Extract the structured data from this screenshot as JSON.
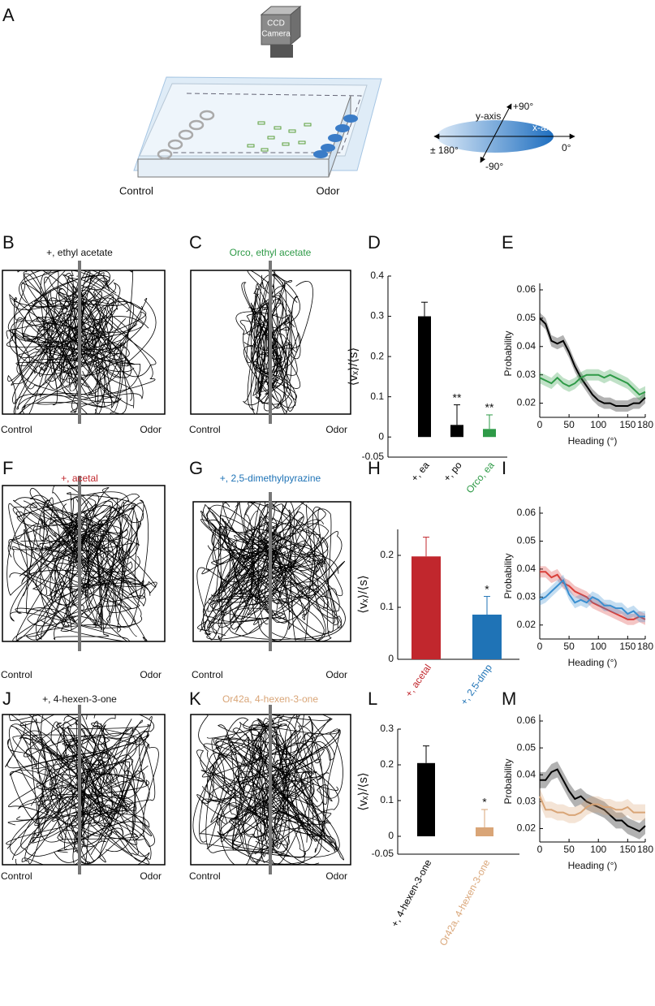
{
  "panels": [
    "A",
    "B",
    "C",
    "D",
    "E",
    "F",
    "G",
    "H",
    "I",
    "J",
    "K",
    "L",
    "M"
  ],
  "setup": {
    "camera": [
      "CCD",
      "Camera"
    ],
    "control": "Control",
    "odor": "Odor",
    "y_axis": "y-axis",
    "x_axis": "x-axis",
    "plus90": "+90°",
    "minus90": "-90°",
    "pm180": "± 180°",
    "zero": "0°"
  },
  "trajectories": [
    {
      "title": "+, ethyl acetate",
      "color": "#111111",
      "left": "Control",
      "right": "Odor"
    },
    {
      "title": "Orco, ethyl acetate",
      "color": "#2e9a47",
      "left": "Control",
      "right": "Odor"
    },
    {
      "title": "+, acetal",
      "color": "#c1272d",
      "left": "Control",
      "right": "Odor"
    },
    {
      "title": "+, 2,5-dimethylpyrazine",
      "color": "#1f73b6",
      "left": "Control",
      "right": "Odor"
    },
    {
      "title": "+, 4-hexen-3-one",
      "color": "#111111",
      "left": "Control",
      "right": "Odor"
    },
    {
      "title": "Or42a, 4-hexen-3-one",
      "color": "#d9a577",
      "left": "Control",
      "right": "Odor"
    }
  ],
  "chart_data": [
    {
      "type": "bar",
      "ylabel": "⟨vₓ⟩/⟨s⟩",
      "categories": [
        "+, ea",
        "+, po",
        "Orco, ea"
      ],
      "values": [
        0.3,
        0.03,
        0.02
      ],
      "errors": [
        0.035,
        0.05,
        0.035
      ],
      "markers": [
        null,
        "**",
        "**"
      ],
      "colors": [
        "#000000",
        "#000000",
        "#2e9a47"
      ],
      "ylim": [
        -0.05,
        0.4
      ],
      "yticks": [
        -0.05,
        0,
        0.1,
        0.2,
        0.3,
        0.4
      ]
    },
    {
      "type": "line",
      "ylabel": "Probability",
      "xlabel": "Heading (°)",
      "x": [
        0,
        10,
        20,
        30,
        40,
        50,
        60,
        70,
        80,
        90,
        100,
        110,
        120,
        130,
        140,
        150,
        160,
        170,
        180
      ],
      "series": [
        {
          "color": "#000000",
          "values": [
            0.05,
            0.048,
            0.042,
            0.041,
            0.042,
            0.038,
            0.033,
            0.029,
            0.026,
            0.023,
            0.021,
            0.02,
            0.02,
            0.019,
            0.019,
            0.019,
            0.02,
            0.02,
            0.022
          ],
          "errors": [
            0.002,
            0.002,
            0.002,
            0.002,
            0.002,
            0.002,
            0.002,
            0.002,
            0.002,
            0.002,
            0.002,
            0.002,
            0.002,
            0.002,
            0.002,
            0.002,
            0.002,
            0.002,
            0.002
          ]
        },
        {
          "color": "#2e9a47",
          "values": [
            0.029,
            0.028,
            0.027,
            0.029,
            0.027,
            0.026,
            0.027,
            0.029,
            0.03,
            0.03,
            0.03,
            0.029,
            0.03,
            0.029,
            0.028,
            0.027,
            0.025,
            0.023,
            0.024
          ],
          "errors": [
            0.002,
            0.002,
            0.002,
            0.002,
            0.002,
            0.002,
            0.002,
            0.002,
            0.002,
            0.002,
            0.002,
            0.002,
            0.002,
            0.002,
            0.002,
            0.002,
            0.002,
            0.002,
            0.002
          ]
        }
      ],
      "xlim": [
        0,
        180
      ],
      "xticks": [
        0,
        50,
        100,
        150,
        180
      ],
      "ylim": [
        0.015,
        0.06
      ],
      "yticks": [
        0.02,
        0.03,
        0.04,
        0.05,
        0.06
      ]
    },
    {
      "type": "bar",
      "ylabel": "⟨vₓ⟩/⟨s⟩",
      "categories": [
        "+, acetal",
        "+, 2,5-dmp"
      ],
      "values": [
        0.198,
        0.086
      ],
      "errors": [
        0.037,
        0.035
      ],
      "markers": [
        null,
        "*"
      ],
      "colors": [
        "#c1272d",
        "#1f73b6"
      ],
      "ylim": [
        0,
        0.25
      ],
      "yticks": [
        0,
        0.1,
        0.2
      ]
    },
    {
      "type": "line",
      "ylabel": "Probability",
      "xlabel": "Heading (°)",
      "x": [
        0,
        10,
        20,
        30,
        40,
        50,
        60,
        70,
        80,
        90,
        100,
        110,
        120,
        130,
        140,
        150,
        160,
        170,
        180
      ],
      "series": [
        {
          "color": "#d9403a",
          "values": [
            0.039,
            0.039,
            0.037,
            0.038,
            0.035,
            0.034,
            0.032,
            0.031,
            0.03,
            0.028,
            0.027,
            0.026,
            0.025,
            0.024,
            0.023,
            0.022,
            0.022,
            0.023,
            0.022
          ],
          "errors": [
            0.002,
            0.002,
            0.002,
            0.002,
            0.002,
            0.002,
            0.002,
            0.002,
            0.002,
            0.002,
            0.002,
            0.002,
            0.002,
            0.002,
            0.002,
            0.002,
            0.002,
            0.002,
            0.002
          ]
        },
        {
          "color": "#3a8fd0",
          "values": [
            0.029,
            0.03,
            0.032,
            0.034,
            0.036,
            0.031,
            0.028,
            0.029,
            0.028,
            0.03,
            0.029,
            0.027,
            0.027,
            0.026,
            0.026,
            0.024,
            0.025,
            0.023,
            0.023
          ],
          "errors": [
            0.002,
            0.002,
            0.002,
            0.002,
            0.002,
            0.002,
            0.002,
            0.002,
            0.002,
            0.002,
            0.002,
            0.002,
            0.002,
            0.002,
            0.002,
            0.002,
            0.002,
            0.002,
            0.002
          ]
        }
      ],
      "xlim": [
        0,
        180
      ],
      "xticks": [
        0,
        50,
        100,
        150,
        180
      ],
      "ylim": [
        0.015,
        0.06
      ],
      "yticks": [
        0.02,
        0.03,
        0.04,
        0.05,
        0.06
      ]
    },
    {
      "type": "bar",
      "ylabel": "⟨vₓ⟩/⟨s⟩",
      "categories": [
        "+, 4-hexen-3-one",
        "Or42a, 4-hexen-3-one"
      ],
      "values": [
        0.205,
        0.025
      ],
      "errors": [
        0.048,
        0.05
      ],
      "markers": [
        null,
        "*"
      ],
      "colors": [
        "#000000",
        "#d9a577"
      ],
      "ylim": [
        -0.05,
        0.3
      ],
      "yticks": [
        -0.05,
        0,
        0.1,
        0.2,
        0.3
      ]
    },
    {
      "type": "line",
      "ylabel": "Probability",
      "xlabel": "Heading (°)",
      "x": [
        0,
        10,
        20,
        30,
        40,
        50,
        60,
        70,
        80,
        90,
        100,
        110,
        120,
        130,
        140,
        150,
        160,
        170,
        180
      ],
      "series": [
        {
          "color": "#000000",
          "values": [
            0.038,
            0.038,
            0.041,
            0.042,
            0.038,
            0.034,
            0.031,
            0.032,
            0.03,
            0.029,
            0.028,
            0.027,
            0.025,
            0.023,
            0.023,
            0.021,
            0.02,
            0.019,
            0.021
          ],
          "errors": [
            0.003,
            0.003,
            0.003,
            0.003,
            0.003,
            0.003,
            0.003,
            0.003,
            0.003,
            0.003,
            0.003,
            0.003,
            0.003,
            0.003,
            0.003,
            0.003,
            0.003,
            0.003,
            0.003
          ]
        },
        {
          "color": "#d9a577",
          "values": [
            0.032,
            0.027,
            0.027,
            0.026,
            0.026,
            0.025,
            0.025,
            0.026,
            0.028,
            0.029,
            0.029,
            0.028,
            0.028,
            0.027,
            0.027,
            0.028,
            0.026,
            0.026,
            0.026
          ],
          "errors": [
            0.003,
            0.003,
            0.003,
            0.003,
            0.003,
            0.003,
            0.003,
            0.003,
            0.003,
            0.003,
            0.003,
            0.003,
            0.003,
            0.003,
            0.003,
            0.003,
            0.003,
            0.003,
            0.003
          ]
        }
      ],
      "xlim": [
        0,
        180
      ],
      "xticks": [
        0,
        50,
        100,
        150,
        180
      ],
      "ylim": [
        0.015,
        0.06
      ],
      "yticks": [
        0.02,
        0.03,
        0.04,
        0.05,
        0.06
      ]
    }
  ]
}
